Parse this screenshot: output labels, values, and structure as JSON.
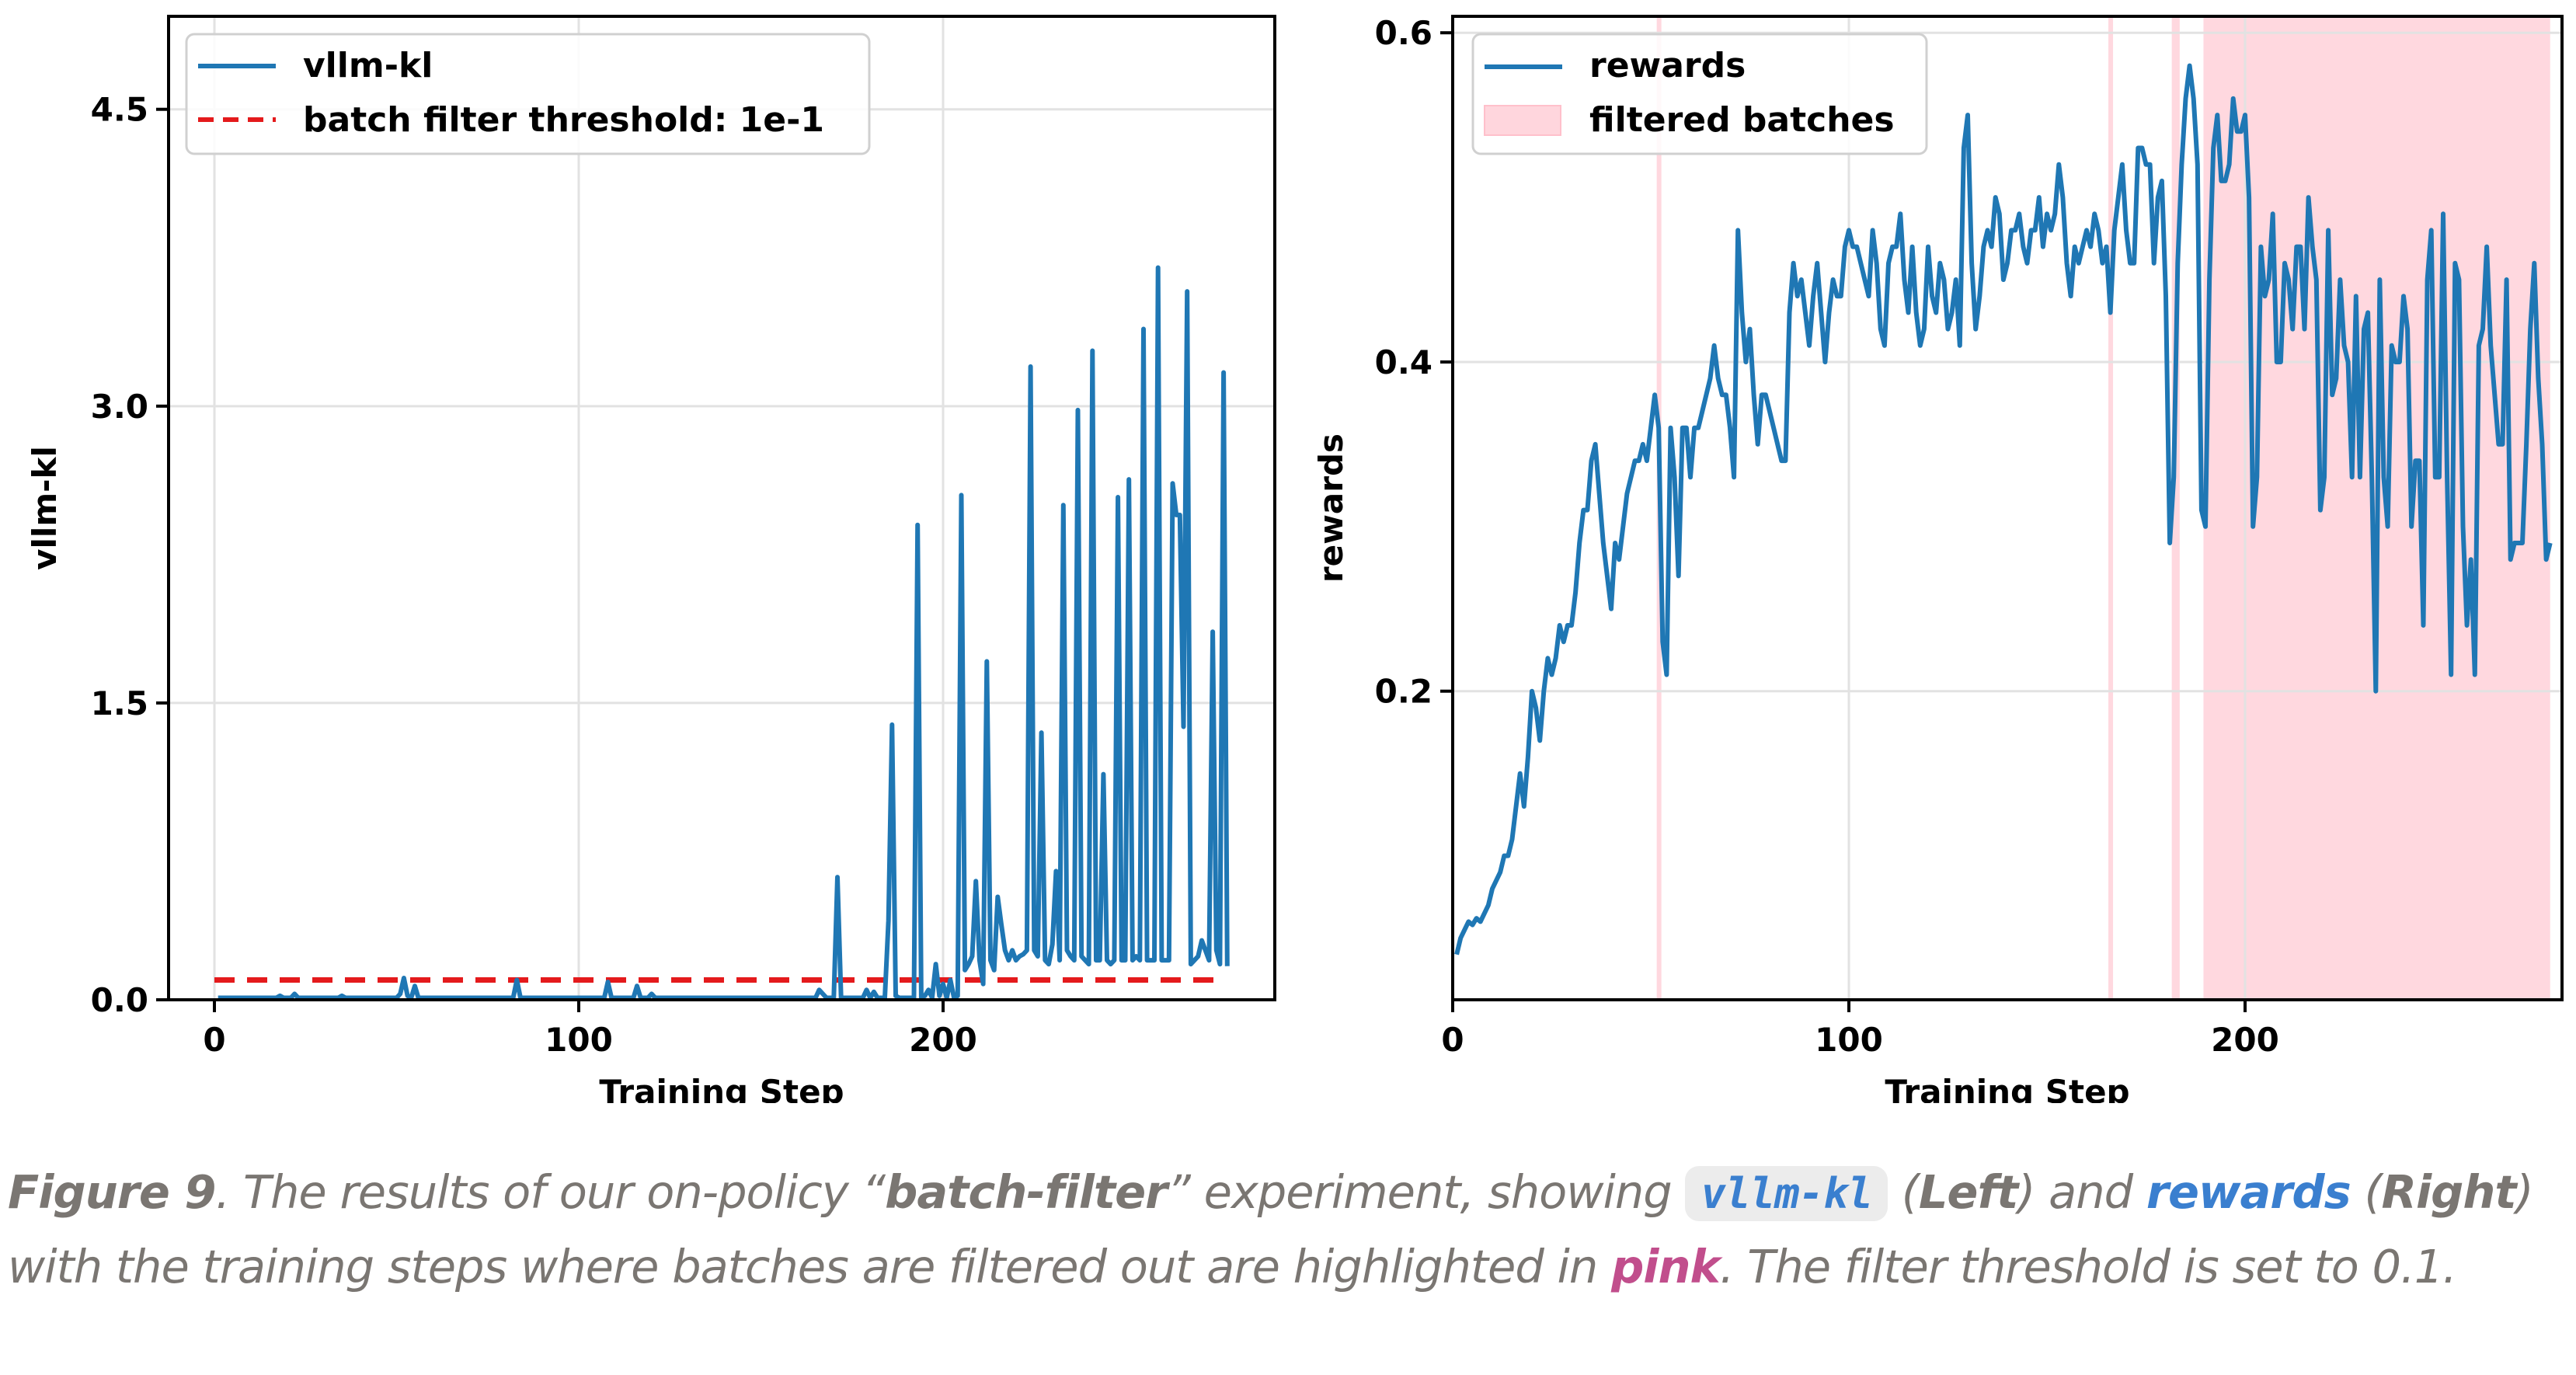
{
  "figure": {
    "caption": {
      "label": "Figure 9",
      "period": ".",
      "text1": " The results of our on-policy “",
      "bold_term": "batch-filter",
      "text2": "” experiment, showing ",
      "code_term": "vllm-kl",
      "text3": " (",
      "left": "Left",
      "text4": ") and ",
      "rewards_term": "rewards",
      "text5": " (",
      "right": "Right",
      "text6": ") with the training steps where batches are filtered out are highlighted in ",
      "pink_term": "pink",
      "text7": ". The filter threshold is set to 0.1."
    },
    "colors": {
      "line": "#1f77b4",
      "threshold": "#e41a1c",
      "filtered": "#ffc0cb",
      "caption_text": "#7a7672",
      "caption_blue": "#3a7fcf",
      "caption_pink": "#c14e8c",
      "code_bg": "#ececec"
    }
  },
  "chart_data": [
    {
      "type": "line",
      "title": "",
      "xlabel": "Training Step",
      "ylabel": "vllm-kl",
      "xlim": [
        -12.5,
        290
      ],
      "ylim": [
        0,
        4.97
      ],
      "xticks": [
        0,
        100,
        200
      ],
      "xtick_labels": [
        "0",
        "100",
        "200"
      ],
      "yticks": [
        0.0,
        1.5,
        3.0,
        4.5
      ],
      "ytick_labels": [
        "0.0",
        "1.5",
        "3.0",
        "4.5"
      ],
      "grid": true,
      "legend": {
        "placement": "top-left",
        "entries": [
          {
            "label": "vllm-kl",
            "style": "solid",
            "color": "#1f77b4"
          },
          {
            "label": "batch filter threshold: 1e-1",
            "style": "dashed",
            "color": "#e41a1c"
          }
        ]
      },
      "threshold": {
        "value": 0.1,
        "x_start": 0,
        "x_end": 277
      },
      "series": [
        {
          "name": "vllm-kl",
          "x_start": 1,
          "values": [
            0.01,
            0.01,
            0.01,
            0.01,
            0.01,
            0.01,
            0.01,
            0.01,
            0.01,
            0.01,
            0.01,
            0.01,
            0.01,
            0.01,
            0.01,
            0.01,
            0.01,
            0.02,
            0.01,
            0.01,
            0.01,
            0.03,
            0.01,
            0.01,
            0.01,
            0.01,
            0.01,
            0.01,
            0.01,
            0.01,
            0.01,
            0.01,
            0.01,
            0.01,
            0.02,
            0.01,
            0.01,
            0.01,
            0.01,
            0.01,
            0.01,
            0.01,
            0.01,
            0.01,
            0.01,
            0.01,
            0.01,
            0.01,
            0.01,
            0.01,
            0.03,
            0.11,
            0.02,
            0.01,
            0.07,
            0.01,
            0.01,
            0.01,
            0.01,
            0.01,
            0.01,
            0.01,
            0.01,
            0.01,
            0.01,
            0.01,
            0.01,
            0.01,
            0.01,
            0.01,
            0.01,
            0.01,
            0.01,
            0.01,
            0.01,
            0.01,
            0.01,
            0.01,
            0.01,
            0.01,
            0.01,
            0.01,
            0.1,
            0.01,
            0.01,
            0.01,
            0.01,
            0.01,
            0.01,
            0.01,
            0.01,
            0.01,
            0.01,
            0.01,
            0.01,
            0.01,
            0.01,
            0.01,
            0.01,
            0.01,
            0.01,
            0.01,
            0.01,
            0.01,
            0.01,
            0.01,
            0.01,
            0.09,
            0.01,
            0.01,
            0.01,
            0.01,
            0.01,
            0.01,
            0.01,
            0.07,
            0.01,
            0.01,
            0.01,
            0.03,
            0.01,
            0.01,
            0.01,
            0.01,
            0.01,
            0.01,
            0.01,
            0.01,
            0.01,
            0.01,
            0.01,
            0.01,
            0.01,
            0.01,
            0.01,
            0.01,
            0.01,
            0.01,
            0.01,
            0.01,
            0.01,
            0.01,
            0.01,
            0.01,
            0.01,
            0.01,
            0.01,
            0.01,
            0.01,
            0.01,
            0.01,
            0.01,
            0.01,
            0.01,
            0.01,
            0.01,
            0.01,
            0.01,
            0.01,
            0.01,
            0.01,
            0.01,
            0.01,
            0.01,
            0.01,
            0.05,
            0.03,
            0.01,
            0.01,
            0.01,
            0.62,
            0.01,
            0.01,
            0.01,
            0.01,
            0.01,
            0.01,
            0.01,
            0.05,
            0.01,
            0.04,
            0.01,
            0.01,
            0.01,
            0.4,
            1.39,
            0.02,
            0.01,
            0.01,
            0.01,
            0.01,
            0.01,
            2.4,
            0.01,
            0.02,
            0.05,
            0.01,
            0.18,
            0.02,
            0.08,
            0.01,
            0.1,
            0.01,
            0.02,
            2.55,
            0.15,
            0.18,
            0.22,
            0.6,
            0.2,
            0.08,
            1.71,
            0.2,
            0.15,
            0.52,
            0.38,
            0.25,
            0.2,
            0.25,
            0.2,
            0.22,
            0.23,
            0.25,
            3.2,
            0.25,
            0.22,
            1.35,
            0.2,
            0.18,
            0.28,
            0.65,
            0.2,
            2.5,
            0.25,
            0.22,
            0.2,
            2.98,
            0.22,
            0.2,
            0.18,
            3.28,
            0.2,
            0.2,
            1.14,
            0.2,
            0.18,
            0.2,
            2.54,
            0.2,
            0.2,
            2.63,
            0.2,
            0.22,
            0.2,
            3.39,
            0.2,
            0.2,
            0.2,
            3.7,
            0.2,
            0.2,
            0.2,
            2.61,
            2.45,
            2.45,
            1.38,
            3.58,
            0.18,
            0.2,
            0.22,
            0.3,
            0.25,
            0.2,
            1.86,
            0.25,
            0.18,
            3.17,
            0.17
          ]
        }
      ]
    },
    {
      "type": "line",
      "title": "",
      "xlabel": "Training Step",
      "ylabel": "rewards",
      "xlim": [
        0,
        280
      ],
      "ylim": [
        0.0125,
        0.61
      ],
      "xticks": [
        0,
        100,
        200
      ],
      "xtick_labels": [
        "0",
        "100",
        "200"
      ],
      "yticks": [
        0.2,
        0.4,
        0.6
      ],
      "ytick_labels": [
        "0.2",
        "0.4",
        "0.6"
      ],
      "grid": true,
      "legend": {
        "placement": "top-left",
        "entries": [
          {
            "label": "rewards",
            "style": "solid",
            "color": "#1f77b4"
          },
          {
            "label": "filtered batches",
            "style": "patch",
            "color": "#ffc0cb"
          }
        ]
      },
      "filtered_spans": [
        [
          51.5,
          52.5
        ],
        [
          165.5,
          166.5
        ],
        [
          181.5,
          183.5
        ],
        [
          189.5,
          277
        ]
      ],
      "series": [
        {
          "name": "rewards",
          "x_start": 1,
          "values": [
            0.04,
            0.05,
            0.055,
            0.06,
            0.058,
            0.062,
            0.06,
            0.065,
            0.07,
            0.08,
            0.085,
            0.09,
            0.1,
            0.1,
            0.11,
            0.13,
            0.15,
            0.13,
            0.16,
            0.2,
            0.19,
            0.17,
            0.2,
            0.22,
            0.21,
            0.22,
            0.24,
            0.23,
            0.24,
            0.24,
            0.26,
            0.29,
            0.31,
            0.31,
            0.34,
            0.35,
            0.32,
            0.29,
            0.27,
            0.25,
            0.29,
            0.28,
            0.3,
            0.32,
            0.33,
            0.34,
            0.34,
            0.35,
            0.34,
            0.36,
            0.38,
            0.36,
            0.23,
            0.21,
            0.36,
            0.33,
            0.27,
            0.36,
            0.36,
            0.33,
            0.36,
            0.36,
            0.37,
            0.38,
            0.39,
            0.41,
            0.39,
            0.38,
            0.38,
            0.36,
            0.33,
            0.48,
            0.43,
            0.4,
            0.42,
            0.38,
            0.35,
            0.38,
            0.38,
            0.37,
            0.36,
            0.35,
            0.34,
            0.34,
            0.43,
            0.46,
            0.44,
            0.45,
            0.43,
            0.41,
            0.44,
            0.46,
            0.43,
            0.4,
            0.43,
            0.45,
            0.44,
            0.44,
            0.47,
            0.48,
            0.47,
            0.47,
            0.46,
            0.45,
            0.44,
            0.48,
            0.46,
            0.42,
            0.41,
            0.46,
            0.47,
            0.47,
            0.49,
            0.45,
            0.43,
            0.47,
            0.43,
            0.41,
            0.42,
            0.47,
            0.44,
            0.43,
            0.46,
            0.45,
            0.42,
            0.43,
            0.45,
            0.41,
            0.53,
            0.55,
            0.46,
            0.42,
            0.44,
            0.47,
            0.48,
            0.47,
            0.5,
            0.49,
            0.45,
            0.46,
            0.48,
            0.48,
            0.49,
            0.47,
            0.46,
            0.48,
            0.48,
            0.5,
            0.47,
            0.49,
            0.48,
            0.49,
            0.52,
            0.5,
            0.46,
            0.44,
            0.47,
            0.46,
            0.47,
            0.48,
            0.47,
            0.49,
            0.48,
            0.46,
            0.47,
            0.43,
            0.48,
            0.5,
            0.52,
            0.48,
            0.46,
            0.46,
            0.53,
            0.53,
            0.52,
            0.52,
            0.46,
            0.5,
            0.51,
            0.44,
            0.29,
            0.33,
            0.46,
            0.52,
            0.56,
            0.58,
            0.56,
            0.52,
            0.31,
            0.3,
            0.45,
            0.53,
            0.55,
            0.51,
            0.51,
            0.52,
            0.56,
            0.54,
            0.54,
            0.55,
            0.5,
            0.3,
            0.33,
            0.47,
            0.44,
            0.45,
            0.49,
            0.4,
            0.4,
            0.46,
            0.45,
            0.42,
            0.47,
            0.47,
            0.42,
            0.5,
            0.47,
            0.45,
            0.31,
            0.33,
            0.48,
            0.38,
            0.39,
            0.45,
            0.41,
            0.4,
            0.33,
            0.44,
            0.33,
            0.42,
            0.43,
            0.33,
            0.2,
            0.45,
            0.33,
            0.3,
            0.41,
            0.4,
            0.4,
            0.44,
            0.42,
            0.3,
            0.34,
            0.34,
            0.24,
            0.45,
            0.48,
            0.33,
            0.33,
            0.49,
            0.33,
            0.21,
            0.46,
            0.45,
            0.3,
            0.24,
            0.28,
            0.21,
            0.41,
            0.42,
            0.47,
            0.41,
            0.38,
            0.35,
            0.35,
            0.45,
            0.28,
            0.29,
            0.29,
            0.29,
            0.35,
            0.42,
            0.46,
            0.39,
            0.35,
            0.28,
            0.29
          ]
        }
      ]
    }
  ]
}
